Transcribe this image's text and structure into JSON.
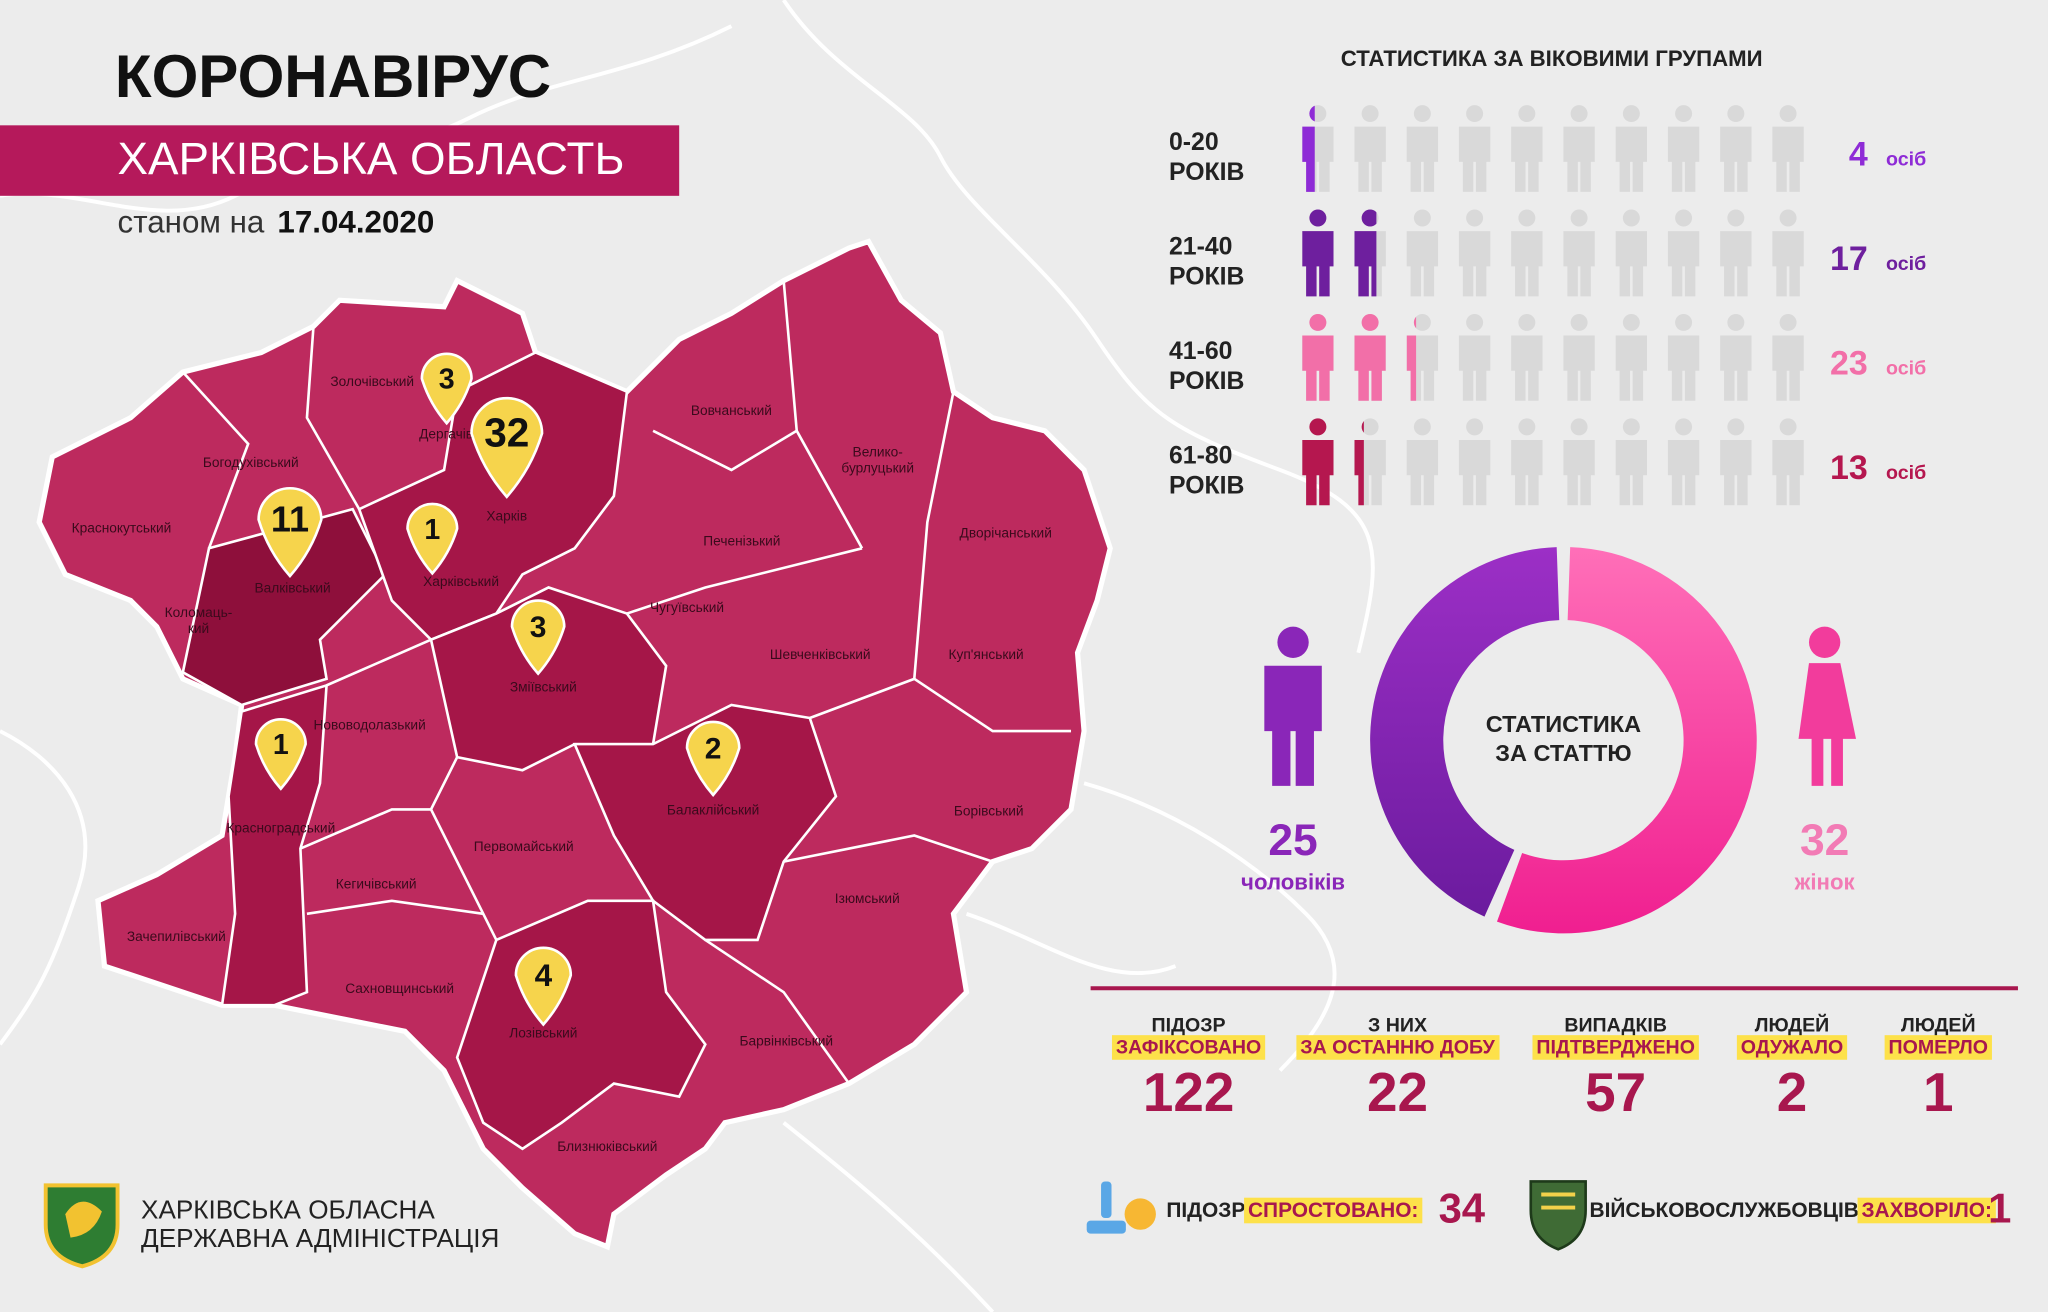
{
  "header": {
    "title": "КОРОНАВІРУС",
    "subtitle": "ХАРКІВСЬКА ОБЛАСТЬ",
    "date_prefix": "станом на",
    "date": "17.04.2020"
  },
  "map": {
    "districts": [
      {
        "lines": [
          "Золочівський"
        ]
      },
      {
        "lines": [
          "Дергачівський"
        ]
      },
      {
        "lines": [
          "Богодухівський"
        ]
      },
      {
        "lines": [
          "Краснокутський"
        ]
      },
      {
        "lines": [
          "Харків"
        ]
      },
      {
        "lines": [
          "Харківський"
        ]
      },
      {
        "lines": [
          "Валківський"
        ]
      },
      {
        "lines": [
          "Коломаць-",
          "кий"
        ]
      },
      {
        "lines": [
          "Вовчанський"
        ]
      },
      {
        "lines": [
          "Велико-",
          "бурлуцький"
        ]
      },
      {
        "lines": [
          "Печенізький"
        ]
      },
      {
        "lines": [
          "Дворічанський"
        ]
      },
      {
        "lines": [
          "Чугуївський"
        ]
      },
      {
        "lines": [
          "Шевченківський"
        ]
      },
      {
        "lines": [
          "Куп'янський"
        ]
      },
      {
        "lines": [
          "Зміївський"
        ]
      },
      {
        "lines": [
          "Нововодолазький"
        ]
      },
      {
        "lines": [
          "Балаклійський"
        ]
      },
      {
        "lines": [
          "Борівський"
        ]
      },
      {
        "lines": [
          "Красноградський"
        ]
      },
      {
        "lines": [
          "Первомайський"
        ]
      },
      {
        "lines": [
          "Кегичівський"
        ]
      },
      {
        "lines": [
          "Ізюмський"
        ]
      },
      {
        "lines": [
          "Зачепилівський"
        ]
      },
      {
        "lines": [
          "Сахновщинський"
        ]
      },
      {
        "lines": [
          "Лозівський"
        ]
      },
      {
        "lines": [
          "Барвінківський"
        ]
      },
      {
        "lines": [
          "Близнюківський"
        ]
      }
    ],
    "pins": [
      3,
      32,
      11,
      1,
      3,
      1,
      2,
      4
    ]
  },
  "age_stats": {
    "title": "СТАТИСТИКА ЗА ВІКОВИМИ ГРУПАМИ",
    "years_label": "РОКІВ",
    "unit": "осіб",
    "groups": [
      {
        "range": "0-20",
        "count": 4,
        "color": "#8e2bd6"
      },
      {
        "range": "21-40",
        "count": 17,
        "color": "#6e1f9e"
      },
      {
        "range": "41-60",
        "count": 23,
        "color": "#f26fa8"
      },
      {
        "range": "61-80",
        "count": 13,
        "color": "#b5174f"
      }
    ]
  },
  "gender": {
    "title_lines": [
      "СТАТИСТИКА",
      "ЗА СТАТТЮ"
    ],
    "men": {
      "value": 25,
      "label": "чоловіків",
      "color": "#8a26b8"
    },
    "women": {
      "value": 32,
      "label": "жінок",
      "color": "#f23c9c"
    }
  },
  "totals": [
    {
      "top": "ПІДОЗР",
      "highlight": "ЗАФІКСОВАНО",
      "value": 122
    },
    {
      "top": "З НИХ",
      "highlight": "ЗА ОСТАННЮ ДОБУ",
      "value": 22
    },
    {
      "top": "ВИПАДКІВ",
      "highlight": "ПІДТВЕРДЖЕНО",
      "value": 57
    },
    {
      "top": "ЛЮДЕЙ",
      "highlight": "ОДУЖАЛО",
      "value": 2
    },
    {
      "top": "ЛЮДЕЙ",
      "highlight": "ПОМЕРЛО",
      "value": 1
    }
  ],
  "footer": {
    "refuted": {
      "prefix": "ПІДОЗР",
      "highlight": "СПРОСТОВАНО:",
      "value": 34
    },
    "military": {
      "prefix": "ВІЙСЬКОВОСЛУЖБОВЦІВ",
      "highlight": "ЗАХВОРІЛО:",
      "value": 1
    },
    "organization": [
      "ХАРКІВСЬКА ОБЛАСНА",
      "ДЕРЖАВНА АДМІНІСТРАЦІЯ"
    ]
  }
}
